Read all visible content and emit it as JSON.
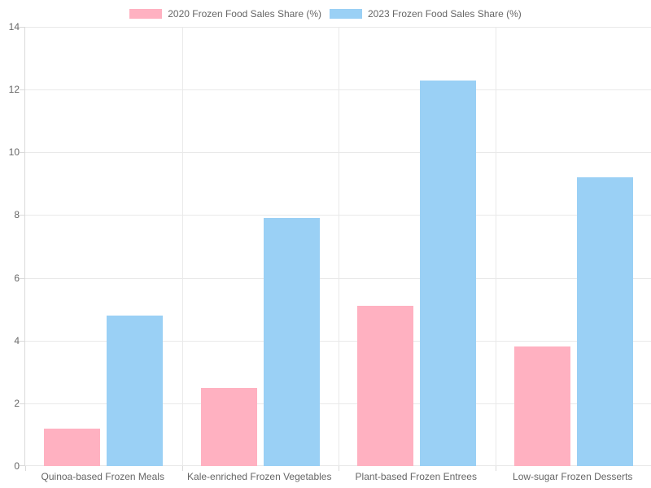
{
  "colors": {
    "series_2020": "#FFB1C1",
    "series_2023": "#9AD0F5",
    "gridline": "#E9E9E9",
    "axis_border": "#DADADA",
    "axis_text": "#666666",
    "background": "#FFFFFF"
  },
  "legend": {
    "position": "top",
    "items": [
      {
        "label": "2020 Frozen Food Sales Share (%)",
        "color": "#FFB1C1"
      },
      {
        "label": "2023 Frozen Food Sales Share (%)",
        "color": "#9AD0F5"
      }
    ]
  },
  "chart_data": {
    "type": "bar",
    "categories": [
      "Quinoa-based Frozen Meals",
      "Kale-enriched Frozen Vegetables",
      "Plant-based Frozen Entrees",
      "Low-sugar Frozen Desserts"
    ],
    "series": [
      {
        "name": "2020 Frozen Food Sales Share (%)",
        "color": "#FFB1C1",
        "values": [
          1.2,
          2.5,
          5.1,
          3.8
        ]
      },
      {
        "name": "2023 Frozen Food Sales Share (%)",
        "color": "#9AD0F5",
        "values": [
          4.8,
          7.9,
          12.3,
          9.2
        ]
      }
    ],
    "title": "",
    "xlabel": "",
    "ylabel": "",
    "ylim": [
      0,
      14
    ],
    "ytick_step": 2,
    "ytick_labels": [
      "0",
      "2",
      "4",
      "6",
      "8",
      "10",
      "12",
      "14"
    ],
    "grid": true,
    "legend_position": "top"
  }
}
